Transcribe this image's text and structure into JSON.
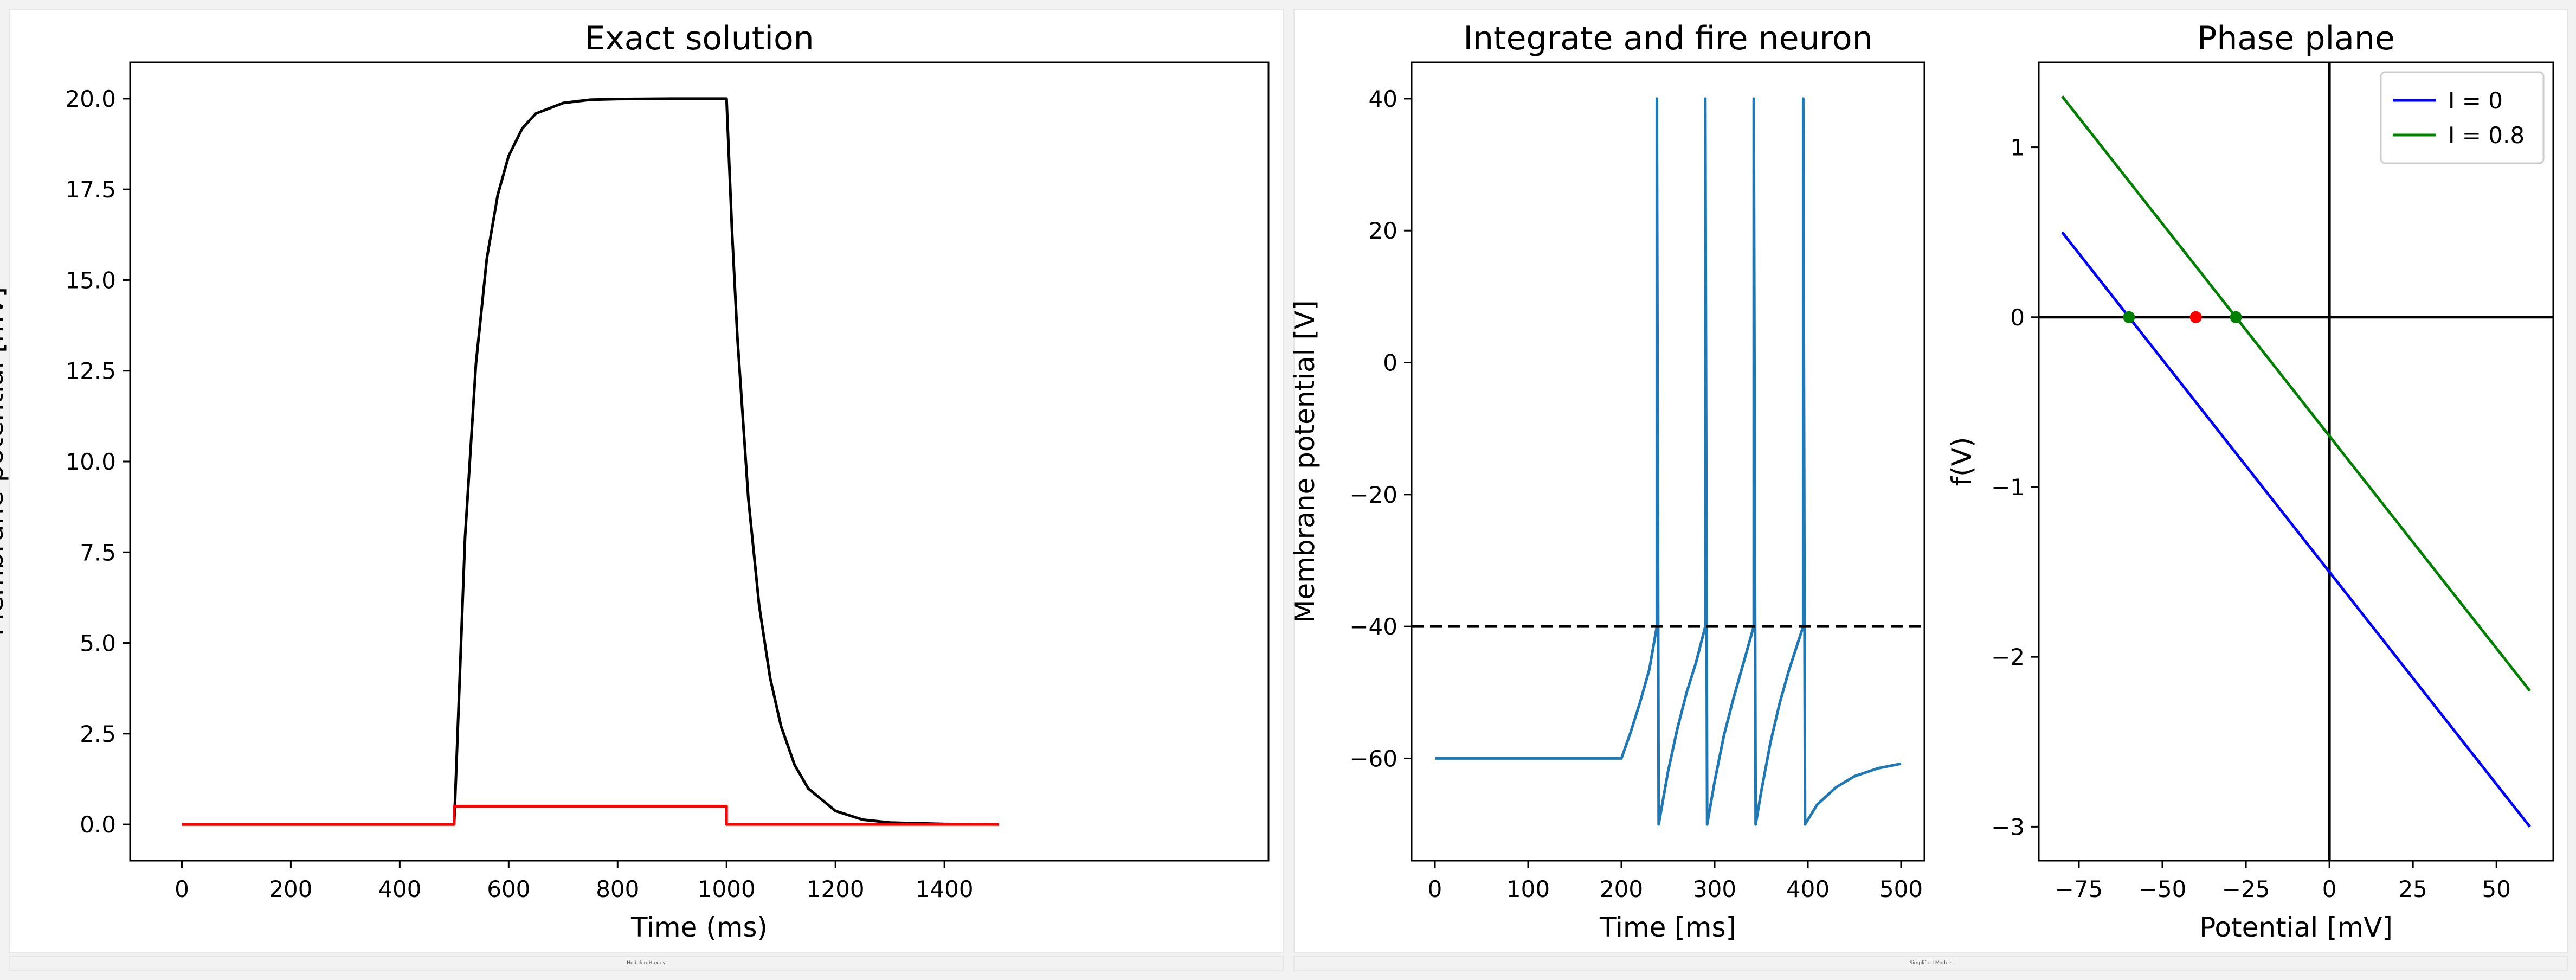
{
  "panels": [
    {
      "caption": "Hodgkin-Huxley"
    },
    {
      "caption": "Simplified Models"
    }
  ],
  "chart_data": [
    {
      "type": "line",
      "title": "Exact solution",
      "xlabel": "Time (ms)",
      "ylabel": "Membrane potential [mV]",
      "xlim": [
        -95,
        1995
      ],
      "ylim": [
        -1.0,
        21.0
      ],
      "xticks": [
        0,
        200,
        400,
        600,
        800,
        1000,
        1200,
        1400
      ],
      "yticks": [
        0.0,
        2.5,
        5.0,
        7.5,
        10.0,
        12.5,
        15.0,
        17.5,
        20.0
      ],
      "ytick_labels": [
        "0.0",
        "2.5",
        "5.0",
        "7.5",
        "10.0",
        "12.5",
        "15.0",
        "17.5",
        "20.0"
      ],
      "grid": false,
      "series": [
        {
          "style": "solid",
          "color": "#000000",
          "x": [
            0,
            500,
            520,
            540,
            560,
            580,
            600,
            625,
            650,
            700,
            750,
            800,
            900,
            1000,
            1010,
            1020,
            1040,
            1060,
            1080,
            1100,
            1125,
            1150,
            1200,
            1250,
            1300,
            1400,
            1500
          ],
          "y": [
            0,
            0,
            7.91,
            12.7,
            15.6,
            17.35,
            18.42,
            19.18,
            19.59,
            19.88,
            19.97,
            19.99,
            20.0,
            20.0,
            16.37,
            13.41,
            8.99,
            6.02,
            4.04,
            2.71,
            1.64,
            0.99,
            0.37,
            0.13,
            0.05,
            0.01,
            0.0
          ]
        },
        {
          "style": "dashed",
          "color": "#000000",
          "x": [
            0,
            500,
            520,
            540,
            560,
            580,
            600,
            625,
            650,
            700,
            750,
            800,
            900,
            1000,
            1010,
            1020,
            1040,
            1060,
            1080,
            1100,
            1125,
            1150,
            1200,
            1250,
            1300,
            1400,
            1500
          ],
          "y": [
            0,
            0,
            7.91,
            12.7,
            15.6,
            17.35,
            18.42,
            19.18,
            19.59,
            19.88,
            19.97,
            19.99,
            20.0,
            20.0,
            16.37,
            13.41,
            8.99,
            6.02,
            4.04,
            2.71,
            1.64,
            0.99,
            0.37,
            0.13,
            0.05,
            0.01,
            0.0
          ]
        },
        {
          "style": "solid",
          "color": "#ff0000",
          "x": [
            0,
            500,
            500,
            1000,
            1000,
            1500
          ],
          "y": [
            0,
            0,
            0.5,
            0.5,
            0,
            0
          ]
        }
      ]
    },
    {
      "type": "line",
      "title": "Integrate and fire neuron",
      "xlabel": "Time [ms]",
      "ylabel": "Membrane potential [V]",
      "xlim": [
        -25,
        525
      ],
      "ylim": [
        -75.5,
        45.5
      ],
      "xticks": [
        0,
        100,
        200,
        300,
        400,
        500
      ],
      "yticks": [
        -60,
        -40,
        -20,
        0,
        20,
        40
      ],
      "ytick_labels": [
        "−60",
        "−40",
        "−20",
        "0",
        "20",
        "40"
      ],
      "grid": false,
      "threshold": -40,
      "series": [
        {
          "style": "solid",
          "color": "#1f77b4",
          "x": [
            0,
            200,
            210,
            220,
            230,
            238,
            238,
            240,
            240,
            250,
            260,
            270,
            280,
            290,
            290,
            292,
            292,
            300,
            310,
            320,
            330,
            342,
            342,
            344,
            344,
            350,
            360,
            370,
            380,
            395,
            395,
            397,
            397,
            410,
            430,
            450,
            475,
            500
          ],
          "y": [
            -60,
            -60,
            -56,
            -51.5,
            -46.5,
            -40,
            40,
            -70,
            -70,
            -62,
            -55.5,
            -50,
            -45.5,
            -40,
            40,
            -70,
            -70,
            -63.5,
            -56.5,
            -51,
            -46,
            -40,
            40,
            -70,
            -70,
            -65,
            -57.5,
            -51.5,
            -46.5,
            -40,
            40,
            -70,
            -70,
            -67,
            -64.4,
            -62.7,
            -61.5,
            -60.8
          ]
        }
      ]
    },
    {
      "type": "line",
      "title": "Phase plane",
      "xlabel": "Potential [mV]",
      "ylabel": "f(V)",
      "xlim": [
        -87,
        67
      ],
      "ylim": [
        -3.2,
        1.5
      ],
      "xticks": [
        -75,
        -50,
        -25,
        0,
        25,
        50
      ],
      "xtick_labels": [
        "−75",
        "−50",
        "−25",
        "0",
        "25",
        "50"
      ],
      "yticks": [
        -3,
        -2,
        -1,
        0,
        1
      ],
      "ytick_labels": [
        "−3",
        "−2",
        "−1",
        "0",
        "1"
      ],
      "grid": false,
      "legend_position": "top-right",
      "series": [
        {
          "name": "I = 0",
          "color": "#0000ff",
          "x": [
            -80,
            60
          ],
          "y": [
            0.5,
            -3.0
          ]
        },
        {
          "name": "I = 0.8",
          "color": "#008000",
          "x": [
            -80,
            60
          ],
          "y": [
            1.3,
            -2.2
          ]
        }
      ],
      "points": [
        {
          "x": -60,
          "y": 0,
          "color": "#008000"
        },
        {
          "x": -40,
          "y": 0,
          "color": "#ff0000"
        },
        {
          "x": -28,
          "y": 0,
          "color": "#008000"
        }
      ]
    }
  ]
}
